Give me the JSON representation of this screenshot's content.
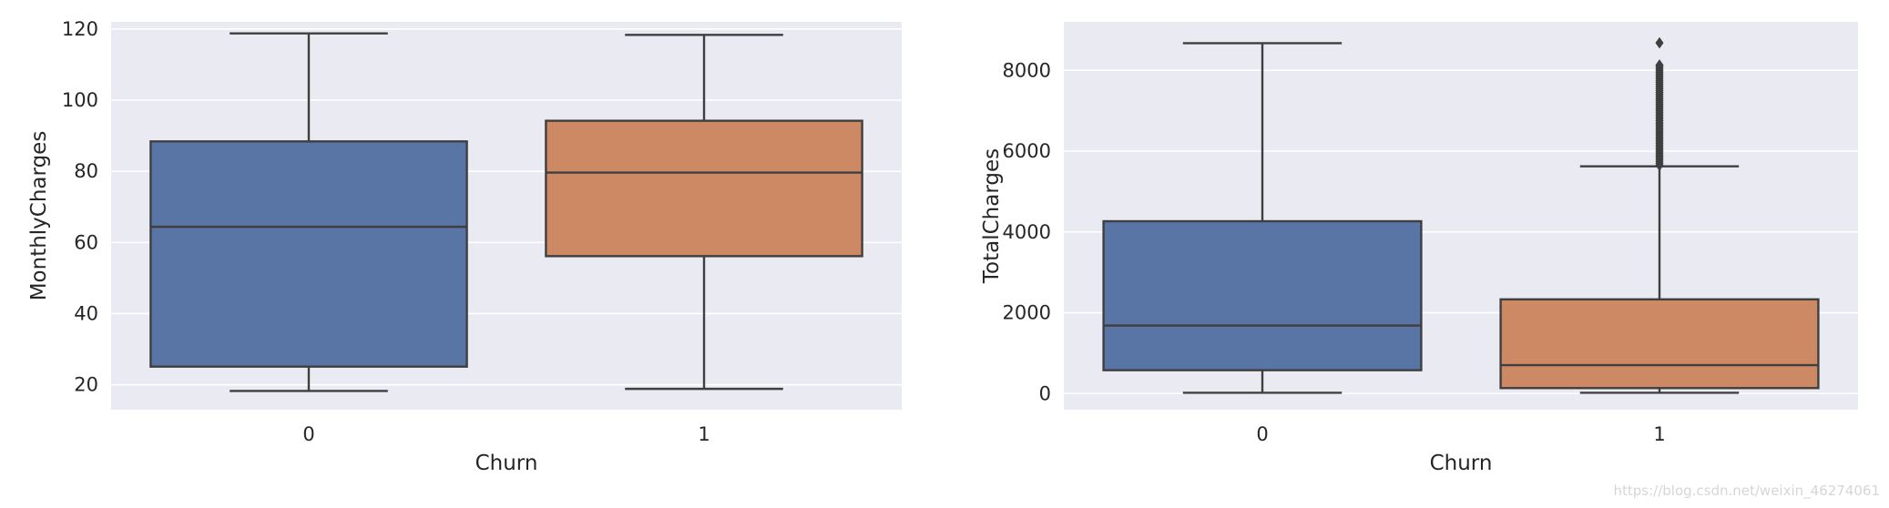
{
  "chart_data": [
    {
      "type": "box",
      "xlabel": "Churn",
      "ylabel": "MonthlyCharges",
      "categories": [
        "0",
        "1"
      ],
      "ylim": [
        13,
        122
      ],
      "yticks": [
        20,
        40,
        60,
        80,
        100,
        120
      ],
      "grid": true,
      "boxes": [
        {
          "category": "0",
          "color": "#5875a5",
          "whisker_low": 18.25,
          "q1": 25.1,
          "median": 64.4,
          "q3": 88.4,
          "whisker_high": 118.75,
          "outliers": []
        },
        {
          "category": "1",
          "color": "#cc8963",
          "whisker_low": 18.85,
          "q1": 56.15,
          "median": 79.65,
          "q3": 94.2,
          "whisker_high": 118.35,
          "outliers": []
        }
      ]
    },
    {
      "type": "box",
      "xlabel": "Churn",
      "ylabel": "TotalCharges",
      "categories": [
        "0",
        "1"
      ],
      "ylim": [
        -400,
        9200
      ],
      "yticks": [
        0,
        2000,
        4000,
        6000,
        8000
      ],
      "grid": true,
      "boxes": [
        {
          "category": "0",
          "color": "#5875a5",
          "whisker_low": 18.8,
          "q1": 577,
          "median": 1683,
          "q3": 4265,
          "whisker_high": 8672,
          "outliers": []
        },
        {
          "category": "1",
          "color": "#cc8963",
          "whisker_low": 18.85,
          "q1": 134.5,
          "median": 703,
          "q3": 2331,
          "whisker_high": 5624,
          "outliers": [
            5650,
            5700,
            5750,
            5800,
            5850,
            5900,
            5950,
            6000,
            6050,
            6100,
            6150,
            6200,
            6250,
            6300,
            6350,
            6400,
            6450,
            6500,
            6550,
            6600,
            6650,
            6700,
            6750,
            6800,
            6850,
            6900,
            6950,
            7000,
            7050,
            7100,
            7150,
            7200,
            7250,
            7300,
            7350,
            7400,
            7450,
            7500,
            7550,
            7600,
            7650,
            7700,
            7750,
            7800,
            7850,
            7900,
            7950,
            8000,
            8050,
            8100,
            8130,
            8680
          ]
        }
      ]
    }
  ],
  "watermark": "https://blog.csdn.net/weixin_46274061"
}
